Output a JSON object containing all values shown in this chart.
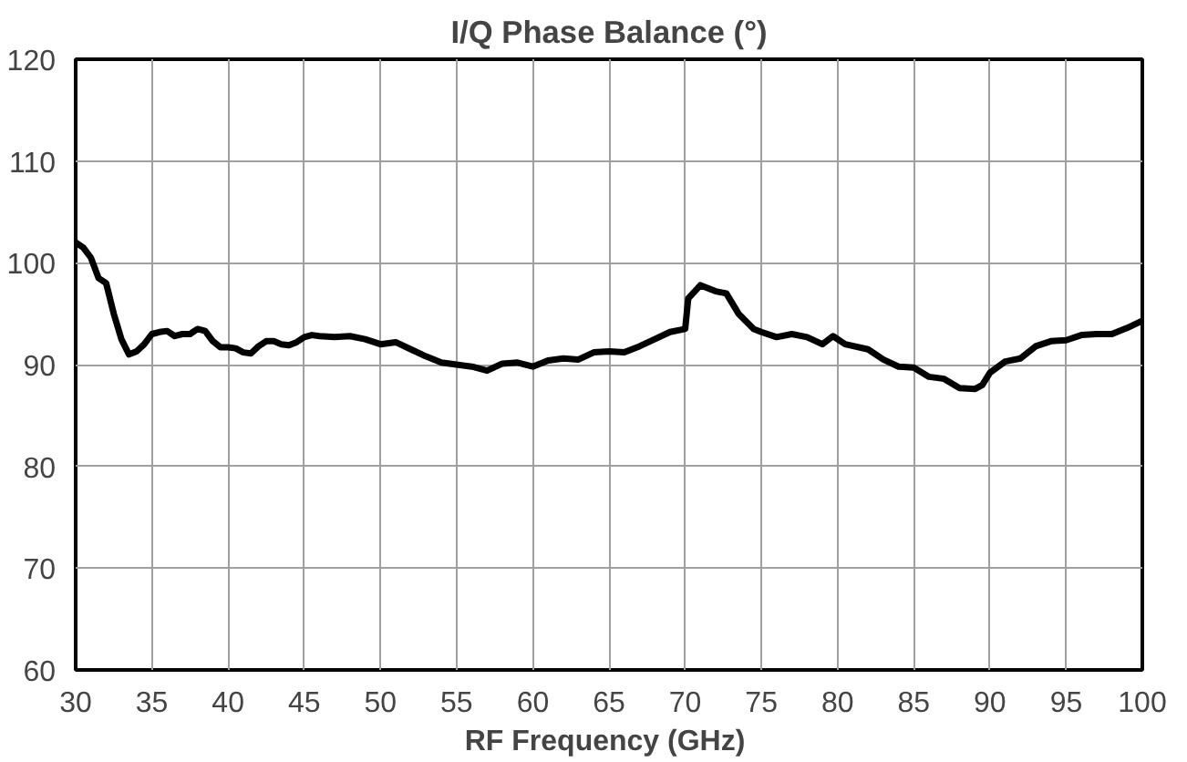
{
  "chart_data": {
    "type": "line",
    "title": "I/Q Phase Balance (°)",
    "xlabel": "RF Frequency  (GHz)",
    "xlim": [
      30,
      100
    ],
    "xticks": [
      30,
      35,
      40,
      45,
      50,
      55,
      60,
      65,
      70,
      75,
      80,
      85,
      90,
      95,
      100
    ],
    "ylim": [
      60,
      120
    ],
    "yticks": [
      60,
      70,
      80,
      90,
      100,
      110,
      120
    ],
    "grid": true,
    "series": [
      {
        "color": "#000000",
        "x": [
          30,
          30.5,
          31,
          31.5,
          32,
          32.5,
          33,
          33.5,
          34,
          34.5,
          35,
          35.5,
          36,
          36.5,
          37,
          37.5,
          38,
          38.5,
          39,
          39.5,
          40,
          40.5,
          41,
          41.5,
          42,
          42.5,
          43,
          43.5,
          44,
          44.5,
          45,
          45.5,
          46,
          47,
          48,
          49,
          50,
          51,
          52,
          53,
          54,
          55,
          56,
          57,
          58,
          59,
          60,
          61,
          62,
          63,
          64,
          65,
          66,
          67,
          68,
          69,
          70,
          70.2,
          71,
          72,
          72.7,
          73.5,
          74.5,
          75,
          76,
          77,
          78,
          79,
          79.7,
          80.5,
          82,
          83,
          84,
          85,
          86,
          87,
          88,
          89,
          89.5,
          90,
          91,
          92,
          93,
          94,
          95,
          96,
          97,
          98,
          99,
          100
        ],
        "values": [
          102,
          101.5,
          100.5,
          98.5,
          98,
          95,
          92.5,
          91,
          91.3,
          92,
          93,
          93.2,
          93.3,
          92.8,
          93,
          93,
          93.5,
          93.3,
          92.3,
          91.7,
          91.7,
          91.6,
          91.2,
          91.1,
          91.8,
          92.3,
          92.3,
          92,
          91.9,
          92.2,
          92.7,
          92.9,
          92.8,
          92.7,
          92.8,
          92.5,
          92,
          92.2,
          91.5,
          90.8,
          90.2,
          90,
          89.8,
          89.4,
          90.1,
          90.2,
          89.8,
          90.4,
          90.6,
          90.5,
          91.2,
          91.3,
          91.2,
          91.8,
          92.5,
          93.2,
          93.5,
          96.5,
          97.8,
          97.2,
          97,
          95,
          93.5,
          93.2,
          92.7,
          93,
          92.7,
          92,
          92.8,
          92,
          91.5,
          90.5,
          89.8,
          89.7,
          88.8,
          88.6,
          87.7,
          87.6,
          88,
          89.2,
          90.3,
          90.6,
          91.8,
          92.3,
          92.4,
          92.9,
          93,
          93,
          93.6,
          94.3
        ]
      }
    ]
  }
}
